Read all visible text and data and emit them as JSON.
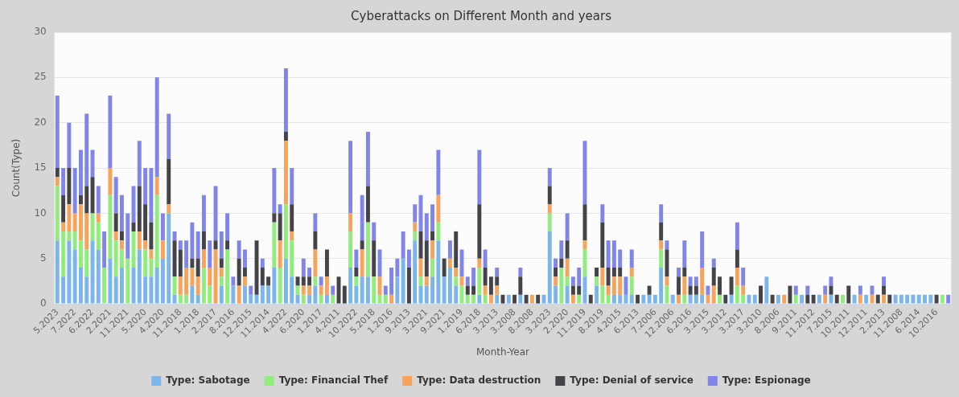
{
  "chart_data": {
    "type": "bar",
    "title": "Cyberattacks on Different Month and years",
    "xlabel": "Month-Year",
    "ylabel": "Count(Type)",
    "stacked": true,
    "grid": "y",
    "legend": "bottom",
    "ylim": [
      0,
      30
    ],
    "yticks": [
      0,
      5,
      10,
      15,
      20,
      25,
      30
    ],
    "categories": [
      "5.2023",
      null,
      null,
      "7.2022",
      null,
      null,
      "6.2022",
      null,
      null,
      "2.2021",
      null,
      null,
      "11.2021",
      null,
      null,
      "5.2020",
      null,
      null,
      "4.2020",
      null,
      null,
      "11.2018",
      null,
      null,
      "1.2018",
      null,
      null,
      "2.2017",
      null,
      null,
      "8.2016",
      null,
      null,
      "12.2015",
      null,
      null,
      "11.2014",
      null,
      null,
      "4.2022",
      null,
      null,
      "6.2020",
      null,
      null,
      "1.2017",
      null,
      null,
      "4.2011",
      null,
      null,
      "10.2022",
      null,
      null,
      "5.2018",
      null,
      null,
      "1.2016",
      null,
      null,
      "9.2013",
      null,
      null,
      "3.2021",
      null,
      null,
      "9.2021",
      null,
      null,
      "1.2019",
      null,
      null,
      "6.2018",
      null,
      null,
      "3.2013",
      null,
      null,
      "3.2008",
      null,
      null,
      "8.2008",
      null,
      null,
      "3.2023",
      null,
      null,
      "2.2020",
      null,
      null,
      "11.2019",
      null,
      null,
      "8.2019",
      null,
      null,
      "4.2015",
      null,
      null,
      "6.2013",
      null,
      null,
      "7.2006",
      null,
      null,
      "12.2006",
      null,
      null,
      "6.2016",
      null,
      null,
      "3.2015",
      null,
      null,
      "3.2012",
      null,
      null,
      "3.2017",
      null,
      null,
      "3.2010",
      null,
      null,
      "8.2006",
      null,
      null,
      "9.2011",
      null,
      null,
      "11.2012",
      null,
      null,
      "7.2015",
      null,
      null,
      "10.2011",
      null,
      null,
      "12.2011",
      null,
      null,
      "2.2013",
      null,
      null,
      "11.2008",
      null,
      null,
      "6.2014",
      null,
      null,
      "10.2016",
      null,
      null
    ],
    "series": [
      {
        "name": "Type: Sabotage",
        "color": "#7cb5ec",
        "values": [
          7,
          3,
          7,
          6,
          4,
          3,
          7,
          6,
          0,
          5,
          3,
          4,
          0,
          4,
          6,
          3,
          3,
          4,
          5,
          10,
          1,
          0,
          0,
          2,
          1,
          0,
          0,
          0,
          2,
          0,
          2,
          0,
          2,
          1,
          1,
          2,
          2,
          4,
          0,
          5,
          3,
          1,
          0,
          1,
          2,
          0,
          1,
          0,
          0,
          0,
          4,
          2,
          3,
          3,
          0,
          0,
          0,
          0,
          3,
          5,
          0,
          7,
          2,
          2,
          3,
          7,
          3,
          4,
          2,
          0,
          0,
          0,
          1,
          0,
          0,
          1,
          0,
          1,
          0,
          1,
          0,
          0,
          0,
          1,
          8,
          2,
          0,
          2,
          0,
          0,
          3,
          0,
          2,
          0,
          0,
          1,
          1,
          1,
          1,
          0,
          1,
          1,
          1,
          4,
          0,
          1,
          0,
          0,
          1,
          1,
          1,
          0,
          0,
          0,
          0,
          1,
          0,
          0,
          1,
          1,
          0,
          3,
          0,
          1,
          0,
          0,
          0,
          1,
          0,
          0,
          1,
          0,
          1,
          0,
          0,
          0,
          1,
          0,
          1,
          0,
          0,
          0,
          0,
          1,
          1,
          1,
          1,
          1,
          1,
          1,
          0,
          0,
          0
        ]
      },
      {
        "name": "Type: Financial Thef",
        "color": "#90ed7d",
        "values": [
          6,
          5,
          1,
          2,
          3,
          3,
          3,
          3,
          4,
          7,
          4,
          2,
          5,
          4,
          0,
          3,
          2,
          8,
          0,
          0,
          2,
          1,
          1,
          0,
          0,
          4,
          2,
          0,
          1,
          6,
          0,
          0,
          0,
          0,
          0,
          0,
          0,
          5,
          4,
          6,
          4,
          1,
          1,
          0,
          1,
          1,
          0,
          1,
          0,
          0,
          4,
          1,
          0,
          6,
          3,
          1,
          1,
          0,
          0,
          0,
          0,
          1,
          1,
          0,
          2,
          2,
          0,
          0,
          1,
          2,
          1,
          1,
          3,
          1,
          0,
          0,
          0,
          0,
          0,
          0,
          0,
          0,
          0,
          0,
          2,
          0,
          4,
          1,
          0,
          1,
          3,
          0,
          1,
          2,
          1,
          0,
          0,
          0,
          2,
          0,
          0,
          0,
          0,
          2,
          2,
          0,
          0,
          1,
          0,
          0,
          0,
          0,
          0,
          1,
          0,
          0,
          2,
          1,
          0,
          0,
          0,
          0,
          0,
          0,
          0,
          0,
          1,
          0,
          0,
          0,
          0,
          0,
          0,
          0,
          1,
          0,
          0,
          0,
          0,
          0,
          0,
          0,
          0,
          0,
          0,
          0,
          0,
          0,
          0,
          0,
          0,
          1,
          0
        ]
      },
      {
        "name": "Type: Data destruction",
        "color": "#f7a35c",
        "values": [
          1,
          1,
          3,
          2,
          4,
          4,
          0,
          1,
          0,
          3,
          1,
          1,
          0,
          0,
          2,
          1,
          1,
          2,
          2,
          1,
          0,
          2,
          3,
          2,
          2,
          2,
          2,
          6,
          1,
          0,
          0,
          2,
          1,
          0,
          0,
          0,
          0,
          0,
          3,
          7,
          1,
          0,
          1,
          1,
          3,
          1,
          2,
          0,
          0,
          0,
          2,
          0,
          3,
          0,
          0,
          2,
          0,
          1,
          0,
          0,
          0,
          1,
          2,
          1,
          2,
          3,
          0,
          1,
          1,
          1,
          0,
          0,
          1,
          1,
          1,
          1,
          0,
          0,
          0,
          0,
          0,
          1,
          0,
          0,
          1,
          1,
          0,
          2,
          1,
          0,
          1,
          0,
          0,
          2,
          1,
          2,
          2,
          0,
          1,
          0,
          0,
          0,
          0,
          1,
          1,
          0,
          1,
          2,
          0,
          0,
          3,
          1,
          2,
          0,
          0,
          0,
          2,
          1,
          0,
          0,
          0,
          0,
          0,
          0,
          1,
          0,
          0,
          0,
          0,
          0,
          0,
          1,
          0,
          0,
          0,
          0,
          0,
          1,
          0,
          1,
          0,
          1,
          0,
          0,
          0,
          0,
          0,
          0,
          0,
          0,
          0,
          0,
          0
        ]
      },
      {
        "name": "Type: Denial of service",
        "color": "#434348",
        "values": [
          1,
          3,
          4,
          0,
          1,
          3,
          4,
          0,
          0,
          0,
          2,
          1,
          0,
          1,
          5,
          4,
          3,
          0,
          0,
          5,
          4,
          3,
          0,
          1,
          2,
          2,
          0,
          1,
          1,
          1,
          0,
          3,
          1,
          0,
          6,
          2,
          1,
          1,
          3,
          1,
          3,
          1,
          1,
          1,
          2,
          0,
          3,
          0,
          3,
          2,
          0,
          1,
          1,
          4,
          4,
          0,
          0,
          0,
          0,
          0,
          4,
          0,
          3,
          4,
          1,
          0,
          2,
          0,
          4,
          0,
          1,
          1,
          6,
          2,
          2,
          1,
          1,
          0,
          1,
          2,
          1,
          0,
          1,
          0,
          2,
          1,
          1,
          2,
          1,
          1,
          4,
          1,
          1,
          5,
          2,
          1,
          1,
          0,
          0,
          1,
          0,
          1,
          0,
          2,
          3,
          0,
          2,
          1,
          1,
          1,
          0,
          0,
          2,
          2,
          1,
          2,
          2,
          0,
          0,
          0,
          2,
          0,
          1,
          0,
          0,
          2,
          0,
          0,
          1,
          1,
          0,
          0,
          1,
          1,
          0,
          2,
          0,
          0,
          0,
          0,
          1,
          1,
          1,
          0,
          0,
          0,
          0,
          0,
          0,
          0,
          1,
          0,
          0
        ]
      },
      {
        "name": "Type: Espionage",
        "color": "#8085e9",
        "values": [
          8,
          3,
          5,
          5,
          5,
          8,
          3,
          3,
          4,
          8,
          4,
          4,
          5,
          4,
          5,
          4,
          6,
          11,
          3,
          5,
          1,
          1,
          3,
          4,
          3,
          4,
          3,
          6,
          3,
          3,
          1,
          2,
          2,
          1,
          0,
          1,
          0,
          5,
          1,
          7,
          4,
          0,
          2,
          1,
          2,
          1,
          0,
          1,
          0,
          0,
          8,
          2,
          5,
          6,
          2,
          3,
          1,
          3,
          2,
          3,
          2,
          2,
          4,
          3,
          3,
          5,
          0,
          2,
          0,
          3,
          1,
          2,
          6,
          2,
          0,
          1,
          0,
          0,
          0,
          1,
          0,
          0,
          0,
          0,
          2,
          1,
          2,
          3,
          1,
          2,
          7,
          0,
          0,
          2,
          3,
          3,
          2,
          2,
          2,
          0,
          0,
          0,
          0,
          2,
          1,
          0,
          1,
          3,
          1,
          1,
          4,
          1,
          1,
          0,
          0,
          0,
          3,
          2,
          0,
          0,
          0,
          0,
          0,
          0,
          0,
          0,
          1,
          0,
          1,
          0,
          0,
          1,
          1,
          0,
          0,
          0,
          0,
          1,
          0,
          1,
          0,
          1,
          0,
          0,
          0,
          0,
          0,
          0,
          0,
          0,
          0,
          0,
          1
        ]
      }
    ]
  }
}
